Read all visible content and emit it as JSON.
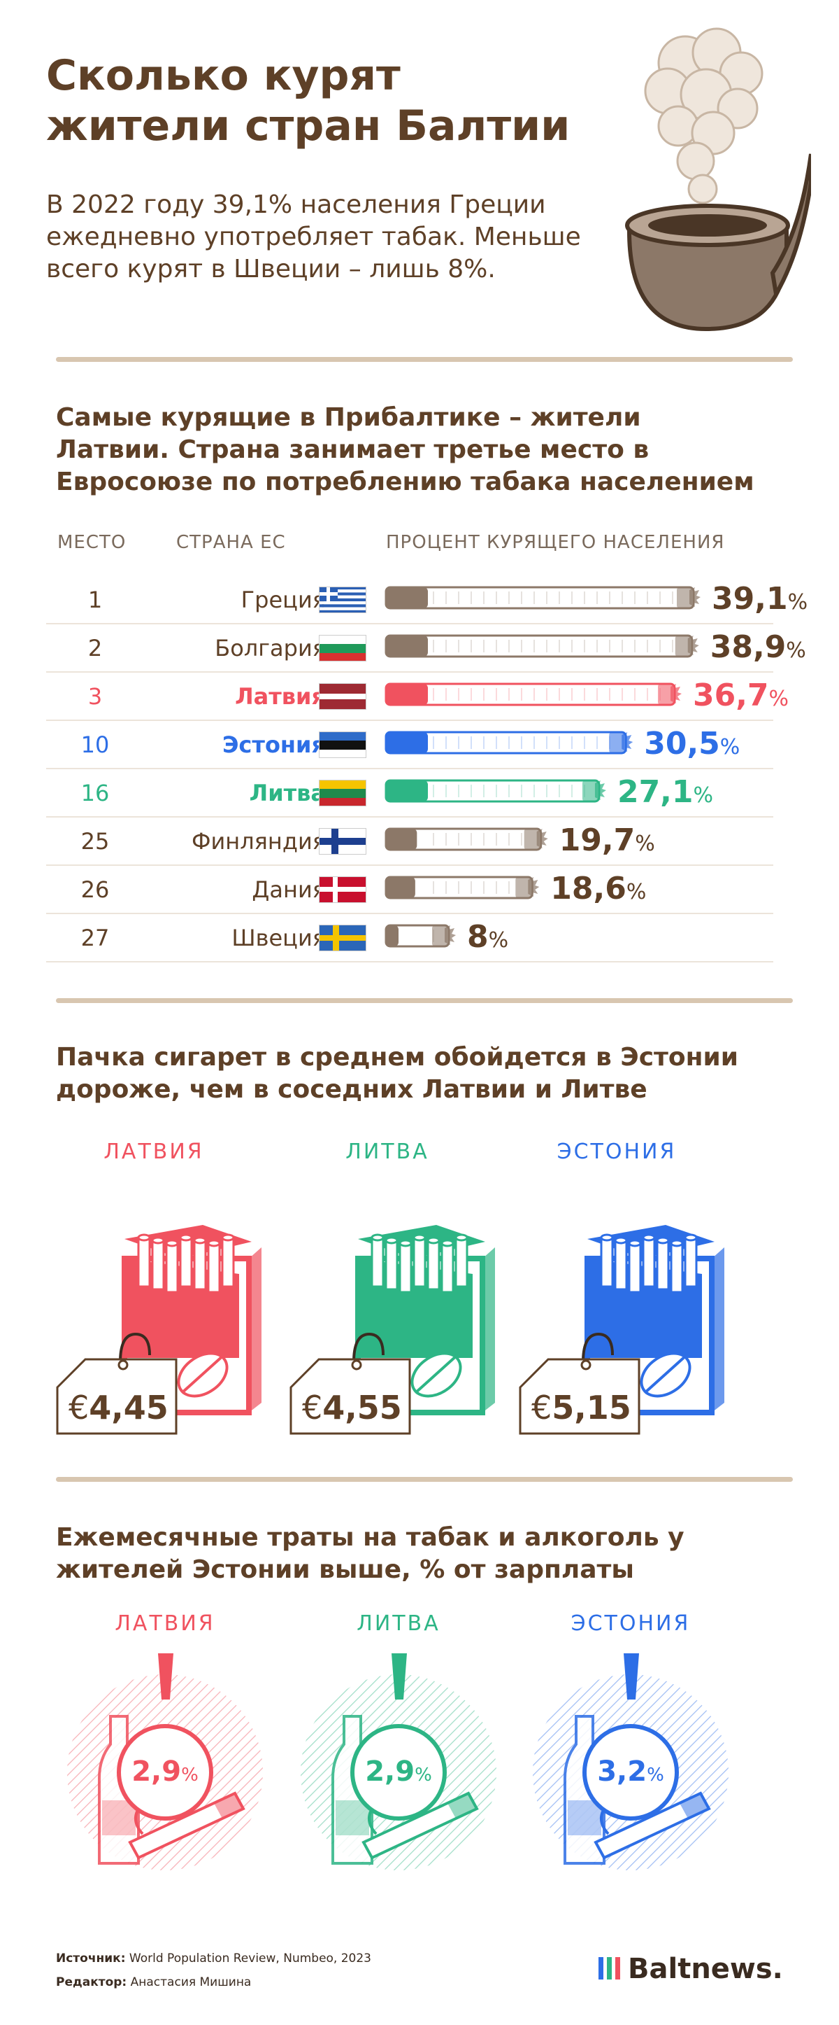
{
  "header": {
    "title_line1": "Сколько курят",
    "title_line2": "жители стран Балтии",
    "lead": "В 2022 году 39,1% населения Греции ежедневно употребляет табак. Меньше всего курят в Швеции – лишь 8%."
  },
  "section1": {
    "title": "Самые курящие в Прибалтике – жители Латвии. Страна занимает третье место в Евросоюзе по потреблению табака населением",
    "col_rank": "МЕСТО",
    "col_country": "СТРАНА ЕС",
    "col_percent": "ПРОЦЕНТ КУРЯЩЕГО НАСЕЛЕНИЯ",
    "percent_sign": "%"
  },
  "chart_data": [
    {
      "type": "bar",
      "categories": [
        "Греция",
        "Болгария",
        "Латвия",
        "Эстония",
        "Литва",
        "Финляндия",
        "Дания",
        "Швеция"
      ],
      "ranks": [
        "1",
        "2",
        "3",
        "10",
        "16",
        "25",
        "26",
        "27"
      ],
      "values": [
        39.1,
        38.9,
        36.7,
        30.5,
        27.1,
        19.7,
        18.6,
        8
      ],
      "value_labels": [
        "39,1",
        "38,9",
        "36,7",
        "30,5",
        "27,1",
        "19,7",
        "18,6",
        "8"
      ],
      "flags": [
        "greece-flag",
        "bulgaria-flag",
        "latvia-flag",
        "estonia-flag",
        "lithuania-flag",
        "finland-flag",
        "denmark-flag",
        "sweden-flag"
      ],
      "xlim": [
        0,
        39.1
      ]
    },
    {
      "type": "bar",
      "title": "Пачка сигарет в среднем обойдется в Эстонии дороже, чем в соседних Латвии и Литве",
      "categories": [
        "ЛАТВИЯ",
        "ЛИТВА",
        "ЭСТОНИЯ"
      ],
      "values": [
        4.45,
        4.55,
        5.15
      ],
      "value_labels": [
        "4,45",
        "4,55",
        "5,15"
      ],
      "currency": "€"
    },
    {
      "type": "bar",
      "title": "Ежемесячные траты на табак и алкоголь у жителей Эстонии выше, % от зарплаты",
      "categories": [
        "ЛАТВИЯ",
        "ЛИТВА",
        "ЭСТОНИЯ"
      ],
      "values": [
        2.9,
        2.9,
        3.2
      ],
      "value_labels": [
        "2,9",
        "2,9",
        "3,2"
      ]
    }
  ],
  "colors": {
    "brown": "#5e4027",
    "latvia": "#f0525f",
    "estonia": "#2d6ee6",
    "lithuania": "#2db585",
    "gray_cig": "#8c7868",
    "rule": "#d8c6b0"
  },
  "footer": {
    "source_label": "Источник:",
    "source": "World Population Review, Numbeo, 2023",
    "editor_label": "Редактор:",
    "editor": "Анастасия Мишина",
    "logo": "Baltnews."
  }
}
